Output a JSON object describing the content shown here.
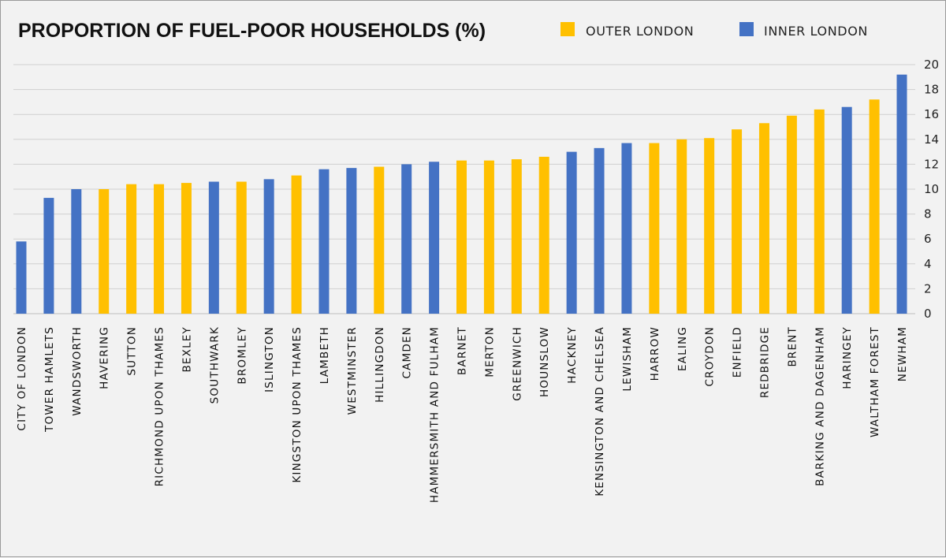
{
  "chart_data": {
    "type": "bar",
    "title": "PROPORTION OF FUEL-POOR HOUSEHOLDS (%)",
    "xlabel": "",
    "ylabel": "",
    "ylim": [
      0,
      20
    ],
    "yticks": [
      0,
      2,
      4,
      6,
      8,
      10,
      12,
      14,
      16,
      18,
      20
    ],
    "y_axis_side": "right",
    "grid": true,
    "legend_position": "top-right",
    "legend": [
      {
        "name": "OUTER LONDON",
        "color": "#ffc000"
      },
      {
        "name": "INNER LONDON",
        "color": "#4472c4"
      }
    ],
    "categories": [
      "CITY OF LONDON",
      "TOWER HAMLETS",
      "WANDSWORTH",
      "HAVERING",
      "SUTTON",
      "RICHMOND UPON THAMES",
      "BEXLEY",
      "SOUTHWARK",
      "BROMLEY",
      "ISLINGTON",
      "KINGSTON UPON THAMES",
      "LAMBETH",
      "WESTMINSTER",
      "HILLINGDON",
      "CAMDEN",
      "HAMMERSMITH AND FULHAM",
      "BARNET",
      "MERTON",
      "GREENWICH",
      "HOUNSLOW",
      "HACKNEY",
      "KENSINGTON AND CHELSEA",
      "LEWISHAM",
      "HARROW",
      "EALING",
      "CROYDON",
      "ENFIELD",
      "REDBRIDGE",
      "BRENT",
      "BARKING AND DAGENHAM",
      "HARINGEY",
      "WALTHAM FOREST",
      "NEWHAM"
    ],
    "values": [
      5.8,
      9.3,
      10.0,
      10.0,
      10.4,
      10.4,
      10.5,
      10.6,
      10.6,
      10.8,
      11.1,
      11.6,
      11.7,
      11.8,
      12.0,
      12.2,
      12.3,
      12.3,
      12.4,
      12.6,
      13.0,
      13.3,
      13.7,
      13.7,
      14.0,
      14.1,
      14.8,
      15.3,
      15.9,
      16.4,
      16.6,
      17.2,
      19.2
    ],
    "groups": [
      "INNER LONDON",
      "INNER LONDON",
      "INNER LONDON",
      "OUTER LONDON",
      "OUTER LONDON",
      "OUTER LONDON",
      "OUTER LONDON",
      "INNER LONDON",
      "OUTER LONDON",
      "INNER LONDON",
      "OUTER LONDON",
      "INNER LONDON",
      "INNER LONDON",
      "OUTER LONDON",
      "INNER LONDON",
      "INNER LONDON",
      "OUTER LONDON",
      "OUTER LONDON",
      "OUTER LONDON",
      "OUTER LONDON",
      "INNER LONDON",
      "INNER LONDON",
      "INNER LONDON",
      "OUTER LONDON",
      "OUTER LONDON",
      "OUTER LONDON",
      "OUTER LONDON",
      "OUTER LONDON",
      "OUTER LONDON",
      "OUTER LONDON",
      "INNER LONDON",
      "OUTER LONDON",
      "INNER LONDON"
    ]
  }
}
